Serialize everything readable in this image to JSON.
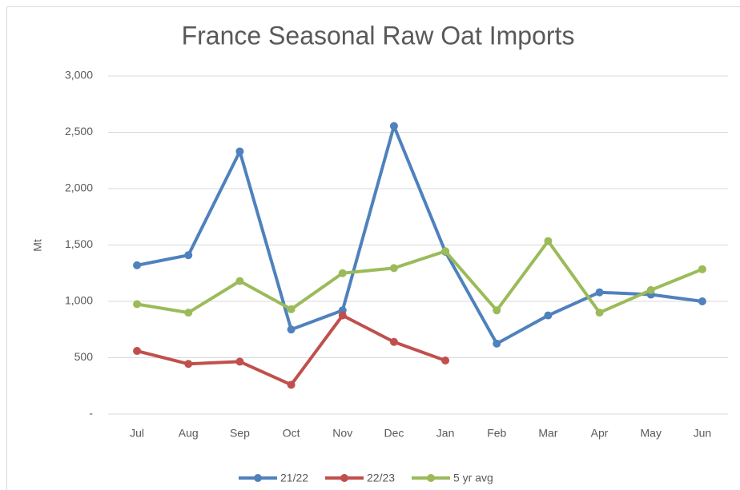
{
  "chart_data": {
    "type": "line",
    "title": "France Seasonal Raw Oat Imports",
    "y_label": "Mt",
    "categories": [
      "Jul",
      "Aug",
      "Sep",
      "Oct",
      "Nov",
      "Dec",
      "Jan",
      "Feb",
      "Mar",
      "Apr",
      "May",
      "Jun"
    ],
    "series": [
      {
        "name": "21/22",
        "color": "#4f81bd",
        "values": [
          1320,
          1410,
          2330,
          750,
          920,
          2555,
          1440,
          625,
          875,
          1080,
          1060,
          1000
        ]
      },
      {
        "name": "22/23",
        "color": "#c0504d",
        "values": [
          560,
          445,
          465,
          260,
          875,
          640,
          475,
          null,
          null,
          null,
          null,
          null
        ]
      },
      {
        "name": "5 yr avg",
        "color": "#9bbb59",
        "values": [
          975,
          900,
          1180,
          930,
          1250,
          1295,
          1445,
          920,
          1535,
          900,
          1100,
          1285
        ]
      }
    ],
    "ylim": [
      0,
      3000
    ],
    "yticks": [
      {
        "value": 0,
        "label": "-"
      },
      500,
      {
        "value": 1000,
        "label": "1,000"
      },
      {
        "value": 1500,
        "label": "1,500"
      },
      {
        "value": 2000,
        "label": "2,000"
      },
      {
        "value": 2500,
        "label": "2,500"
      },
      {
        "value": 3000,
        "label": "3,000"
      }
    ],
    "grid": true,
    "legend": "bottom"
  }
}
